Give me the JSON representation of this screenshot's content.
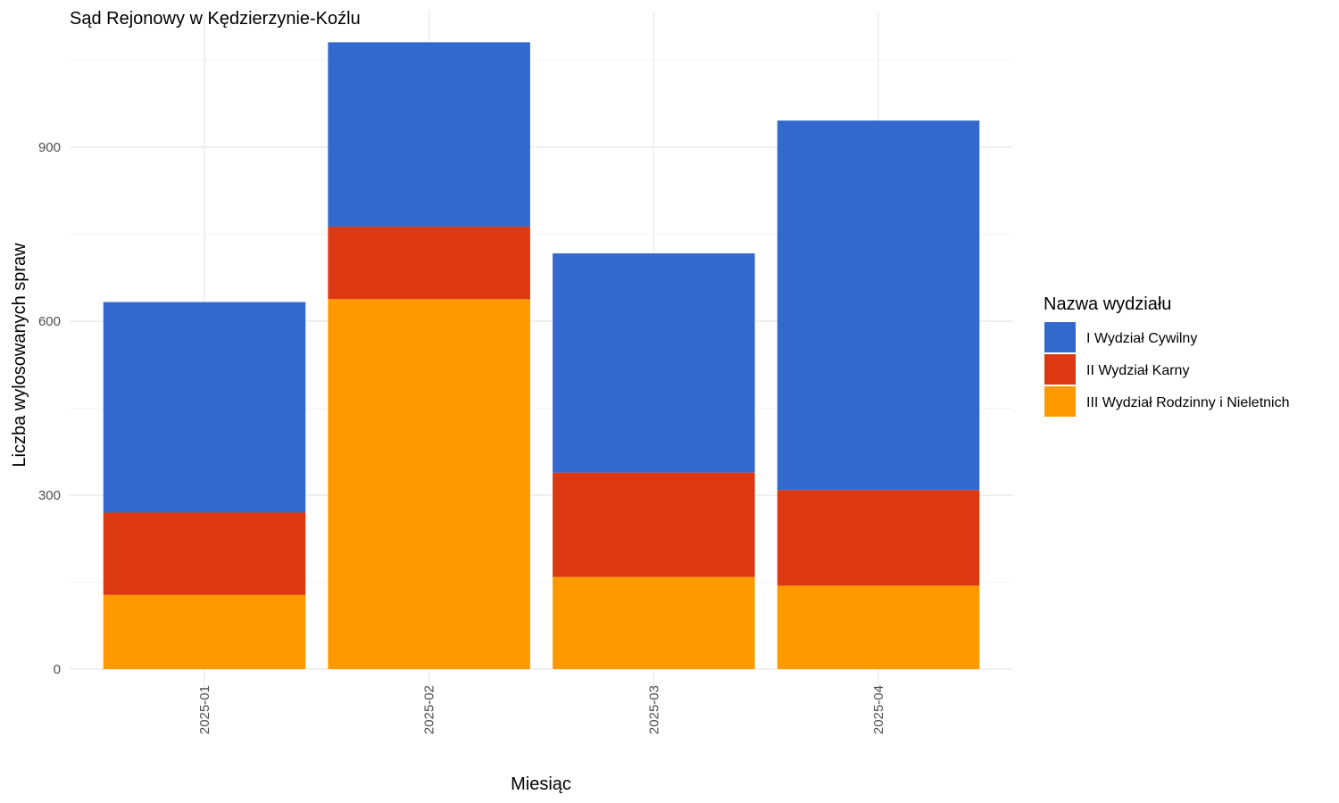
{
  "chart_data": {
    "type": "bar",
    "stacked": true,
    "title": "Sąd Rejonowy w Kędzierzynie-Koźlu",
    "xlabel": "Miesiąc",
    "ylabel": "Liczba wylosowanych spraw",
    "categories": [
      "2025-01",
      "2025-02",
      "2025-03",
      "2025-04"
    ],
    "ylim": [
      0,
      1100
    ],
    "yticks": [
      0,
      300,
      600,
      900
    ],
    "ytick_labels": [
      "0",
      "300",
      "600",
      "900"
    ],
    "grid": true,
    "legend": {
      "title": "Nazwa wydziału",
      "position": "right"
    },
    "series": [
      {
        "name": "I Wydział Cywilny",
        "color": "#3369CC",
        "values": [
          363,
          318,
          378,
          637
        ]
      },
      {
        "name": "II Wydział Karny",
        "color": "#DC3912",
        "values": [
          142,
          125,
          180,
          165
        ]
      },
      {
        "name": "III Wydział Rodzinny i Nieletnich",
        "color": "#FF9900",
        "values": [
          128,
          638,
          159,
          144
        ]
      }
    ]
  }
}
